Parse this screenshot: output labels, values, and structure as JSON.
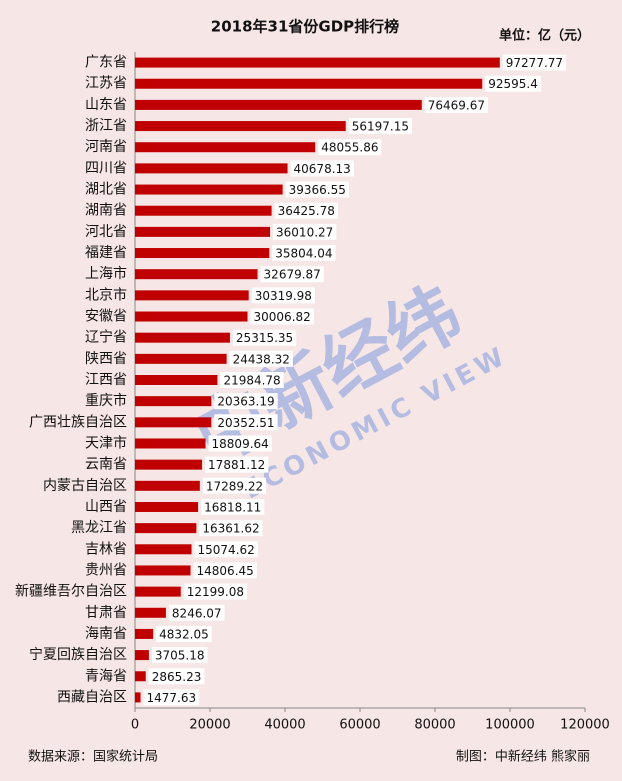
{
  "chart_data": {
    "type": "hbar",
    "title": "2018年31省份GDP排行榜",
    "unit": "单位：亿（元）",
    "categories": [
      "广东省",
      "江苏省",
      "山东省",
      "浙江省",
      "河南省",
      "四川省",
      "湖北省",
      "湖南省",
      "河北省",
      "福建省",
      "上海市",
      "北京市",
      "安徽省",
      "辽宁省",
      "陕西省",
      "江西省",
      "重庆市",
      "广西壮族自治区",
      "天津市",
      "云南省",
      "内蒙古自治区",
      "山西省",
      "黑龙江省",
      "吉林省",
      "贵州省",
      "新疆维吾尔自治区",
      "甘肃省",
      "海南省",
      "宁夏回族自治区",
      "青海省",
      "西藏自治区"
    ],
    "values": [
      97277.77,
      92595.4,
      76469.67,
      56197.15,
      48055.86,
      40678.13,
      39366.55,
      36425.78,
      36010.27,
      35804.04,
      32679.87,
      30319.98,
      30006.82,
      25315.35,
      24438.32,
      21984.78,
      20363.19,
      20352.51,
      18809.64,
      17881.12,
      17289.22,
      16818.11,
      16361.62,
      15074.62,
      14806.45,
      12199.08,
      8246.07,
      4832.05,
      3705.18,
      2865.23,
      1477.63
    ],
    "color": "#c00000",
    "xlim": [
      0,
      120000
    ],
    "xticks": [
      0,
      20000,
      40000,
      60000,
      80000,
      100000,
      120000
    ],
    "watermark": "中新经纬",
    "watermark_sub": "ECONOMIC VIEW",
    "source": "数据来源：国家统计局",
    "credit": "制图：中新经纬 熊家丽"
  }
}
